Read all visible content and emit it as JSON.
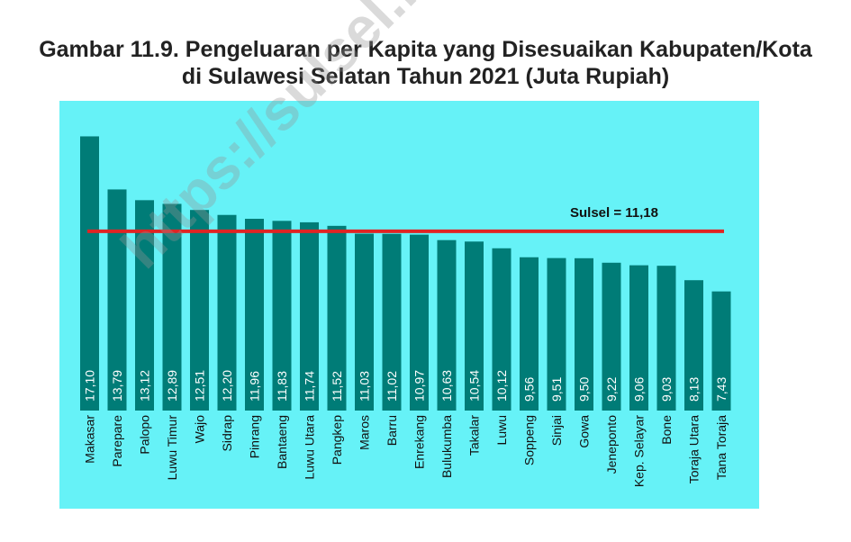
{
  "title_line1": "Gambar 11.9. Pengeluaran per Kapita yang Disesuaikan Kabupaten/Kota",
  "title_line2": "di Sulawesi Selatan Tahun 2021 (Juta Rupiah)",
  "watermark": "https://sulsel.bps.g",
  "colors": {
    "bar": "#007c77",
    "panel": "#66f2f7",
    "reference_line": "#e02424"
  },
  "chart_data": {
    "type": "bar",
    "categories": [
      "Makasar",
      "Parepare",
      "Palopo",
      "Luwu Timur",
      "Wajo",
      "Sidrap",
      "Pinrang",
      "Bantaeng",
      "Luwu Utara",
      "Pangkep",
      "Maros",
      "Barru",
      "Enrekang",
      "Bulukumba",
      "Takalar",
      "Luwu",
      "Soppeng",
      "Sinjai",
      "Gowa",
      "Jeneponto",
      "Kep. Selayar",
      "Bone",
      "Toraja Utara",
      "Tana Toraja"
    ],
    "values": [
      17.1,
      13.79,
      13.12,
      12.89,
      12.51,
      12.2,
      11.96,
      11.83,
      11.74,
      11.52,
      11.03,
      11.02,
      10.97,
      10.63,
      10.54,
      10.12,
      9.56,
      9.51,
      9.5,
      9.22,
      9.06,
      9.03,
      8.13,
      7.43
    ],
    "value_labels": [
      "17,10",
      "13,79",
      "13,12",
      "12,89",
      "12,51",
      "12,20",
      "11,96",
      "11,83",
      "11,74",
      "11,52",
      "11,03",
      "11,02",
      "10,97",
      "10,63",
      "10,54",
      "10,12",
      "9,56",
      "9,51",
      "9,50",
      "9,22",
      "9,06",
      "9,03",
      "8,13",
      "7,43"
    ],
    "reference_line": {
      "value": 11.18,
      "label": "Sulsel = 11,18"
    },
    "ylim": [
      0,
      17.8
    ],
    "grid": false,
    "legend": "none"
  }
}
